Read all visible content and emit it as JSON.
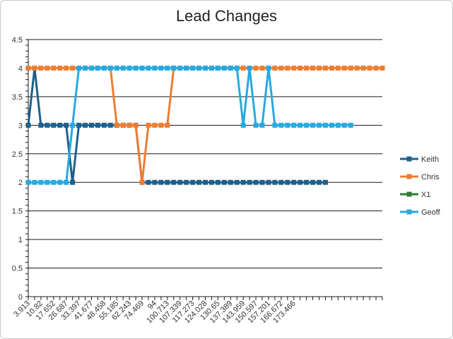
{
  "chart_data": {
    "type": "line",
    "title": "Lead Changes",
    "xlabel": "",
    "ylabel": "",
    "ylim": [
      0,
      4.5
    ],
    "y_ticks": [
      "0",
      "0.5",
      "1",
      "1.5",
      "2",
      "2.5",
      "3",
      "3.5",
      "4",
      "4.5"
    ],
    "x_tick_labels": [
      "3.913",
      "10.82",
      "17.652",
      "26.687",
      "33.397",
      "41.677",
      "48.458",
      "55.185",
      "62.243",
      "74.469",
      "94",
      "100.713",
      "107.339",
      "117.273",
      "124.028",
      "130.65",
      "137.389",
      "143.959",
      "150.597",
      "157.201",
      "166.672",
      "173.466"
    ],
    "x_count": 57,
    "grid": "horizontal",
    "legend_position": "right",
    "series": [
      {
        "name": "Keith",
        "color": "#1f5f8b",
        "values": [
          3,
          4,
          3,
          3,
          3,
          3,
          3,
          2,
          3,
          3,
          3,
          3,
          3,
          3,
          3,
          3,
          3,
          3,
          2,
          2,
          2,
          2,
          2,
          2,
          2,
          2,
          2,
          2,
          2,
          2,
          2,
          2,
          2,
          2,
          2,
          2,
          2,
          2,
          2,
          2,
          2,
          2,
          2,
          2,
          2,
          2,
          2,
          2
        ]
      },
      {
        "name": "Chris",
        "color": "#ed7d31",
        "values": [
          4,
          4,
          4,
          4,
          4,
          4,
          4,
          4,
          4,
          4,
          4,
          4,
          4,
          4,
          3,
          3,
          3,
          3,
          2,
          3,
          3,
          3,
          3,
          4,
          4,
          4,
          4,
          4,
          4,
          4,
          4,
          4,
          4,
          4,
          4,
          4,
          4,
          4,
          4,
          4,
          4,
          4,
          4,
          4,
          4,
          4,
          4,
          4,
          4,
          4,
          4,
          4,
          4,
          4,
          4,
          4,
          4
        ]
      },
      {
        "name": "X1",
        "color": "#2e7d32",
        "values": []
      },
      {
        "name": "Geoff",
        "color": "#27a9e1",
        "values": [
          2,
          2,
          2,
          2,
          2,
          2,
          2,
          3,
          4,
          4,
          4,
          4,
          4,
          4,
          4,
          4,
          4,
          4,
          4,
          4,
          4,
          4,
          4,
          4,
          4,
          4,
          4,
          4,
          4,
          4,
          4,
          4,
          4,
          4,
          3,
          4,
          3,
          3,
          4,
          3,
          3,
          3,
          3,
          3,
          3,
          3,
          3,
          3,
          3,
          3,
          3,
          3
        ]
      }
    ]
  }
}
